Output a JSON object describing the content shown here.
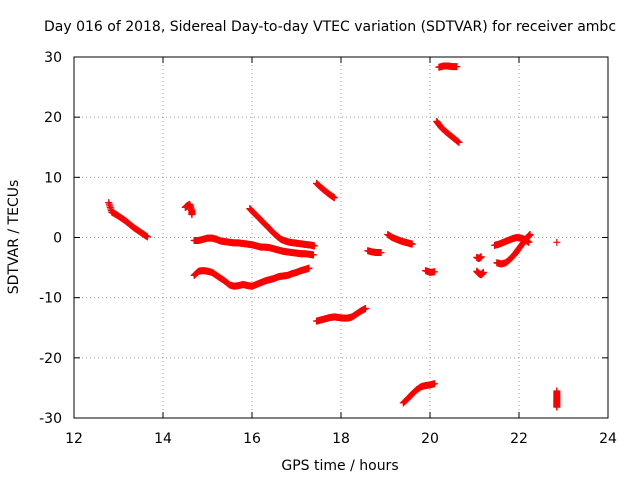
{
  "chart_data": {
    "type": "scatter",
    "title": "Day 016 of 2018, Sidereal Day-to-day VTEC variation (SDTVAR) for receiver ambc",
    "xlabel": "GPS time / hours",
    "ylabel": "SDTVAR / TECUs",
    "xlim": [
      12,
      24
    ],
    "ylim": [
      -30,
      30
    ],
    "xticks": [
      "12",
      "14",
      "16",
      "18",
      "20",
      "22",
      "24"
    ],
    "yticks": [
      "-30",
      "-20",
      "-10",
      "0",
      "10",
      "20",
      "30"
    ],
    "grid": true,
    "marker": "+",
    "color": "#ff0000",
    "series": [
      {
        "name": "s1",
        "x": [
          12.78,
          12.85,
          12.95,
          13.05,
          13.15,
          13.25,
          13.35,
          13.45,
          13.55,
          13.65
        ],
        "y": [
          5.8,
          4.2,
          3.8,
          3.3,
          2.8,
          2.2,
          1.6,
          1.1,
          0.6,
          0.1
        ]
      },
      {
        "name": "s2",
        "x": [
          14.5,
          14.55,
          14.6,
          14.65,
          14.65
        ],
        "y": [
          5.0,
          5.3,
          5.5,
          4.3,
          3.8
        ]
      },
      {
        "name": "s3",
        "x": [
          14.7,
          14.8,
          14.9,
          15.0,
          15.1,
          15.2,
          15.3,
          15.4,
          15.5,
          15.6,
          15.7,
          15.8,
          15.9,
          16.0,
          16.1,
          16.2,
          16.3,
          16.4,
          16.5,
          16.6,
          16.7,
          16.8,
          16.9,
          17.0,
          17.1,
          17.2,
          17.3,
          17.38
        ],
        "y": [
          -0.5,
          -0.5,
          -0.3,
          -0.1,
          -0.1,
          -0.3,
          -0.6,
          -0.7,
          -0.8,
          -0.9,
          -0.9,
          -1.0,
          -1.1,
          -1.2,
          -1.4,
          -1.6,
          -1.6,
          -1.7,
          -1.9,
          -2.1,
          -2.3,
          -2.4,
          -2.5,
          -2.6,
          -2.7,
          -2.7,
          -2.8,
          -2.9
        ]
      },
      {
        "name": "s4",
        "x": [
          14.7,
          14.8,
          14.9,
          15.0,
          15.1,
          15.2,
          15.3,
          15.4,
          15.5,
          15.6,
          15.7,
          15.8,
          15.9,
          16.0,
          16.1,
          16.2,
          16.3,
          16.4,
          16.5,
          16.6,
          16.7,
          16.8,
          16.9,
          17.0,
          17.1,
          17.2,
          17.28
        ],
        "y": [
          -6.3,
          -5.6,
          -5.5,
          -5.6,
          -5.8,
          -6.3,
          -6.8,
          -7.3,
          -7.9,
          -8.1,
          -8.0,
          -7.8,
          -8.0,
          -8.1,
          -7.8,
          -7.5,
          -7.2,
          -7.0,
          -6.8,
          -6.5,
          -6.4,
          -6.3,
          -6.0,
          -5.8,
          -5.5,
          -5.3,
          -5.1
        ]
      },
      {
        "name": "s5",
        "x": [
          15.95,
          16.05,
          16.15,
          16.25,
          16.35,
          16.45,
          16.55,
          16.65,
          16.75,
          16.85,
          16.95,
          17.05,
          17.15,
          17.25,
          17.35,
          17.4
        ],
        "y": [
          4.8,
          4.0,
          3.3,
          2.5,
          1.8,
          1.0,
          0.3,
          -0.3,
          -0.6,
          -0.8,
          -0.9,
          -1.0,
          -1.1,
          -1.2,
          -1.3,
          -1.4
        ]
      },
      {
        "name": "s6",
        "x": [
          17.45,
          17.55,
          17.65,
          17.75,
          17.85
        ],
        "y": [
          9.0,
          8.3,
          7.7,
          7.1,
          6.6
        ]
      },
      {
        "name": "s7",
        "x": [
          17.45,
          17.55,
          17.65,
          17.75,
          17.85,
          17.95,
          18.05,
          18.15,
          18.25,
          18.35,
          18.45,
          18.55
        ],
        "y": [
          -13.9,
          -13.7,
          -13.5,
          -13.3,
          -13.2,
          -13.3,
          -13.4,
          -13.4,
          -13.2,
          -12.7,
          -12.2,
          -11.8
        ]
      },
      {
        "name": "s8",
        "x": [
          18.6,
          18.7,
          18.8,
          18.9
        ],
        "y": [
          -2.2,
          -2.4,
          -2.5,
          -2.5
        ]
      },
      {
        "name": "s9",
        "x": [
          19.05,
          19.15,
          19.25,
          19.35,
          19.45,
          19.55,
          19.6
        ],
        "y": [
          0.5,
          0.0,
          -0.3,
          -0.6,
          -0.8,
          -1.0,
          -1.1
        ]
      },
      {
        "name": "s10",
        "x": [
          19.4,
          19.5,
          19.6,
          19.7,
          19.8,
          19.9,
          20.0,
          20.1
        ],
        "y": [
          -27.5,
          -26.8,
          -26.0,
          -25.3,
          -24.8,
          -24.6,
          -24.5,
          -24.3
        ]
      },
      {
        "name": "s11",
        "x": [
          19.9,
          20.0,
          20.1
        ],
        "y": [
          -5.5,
          -5.8,
          -5.7
        ]
      },
      {
        "name": "s12",
        "x": [
          20.15,
          20.25,
          20.35,
          20.45,
          20.55,
          20.65
        ],
        "y": [
          19.3,
          18.3,
          17.6,
          17.0,
          16.4,
          15.8
        ]
      },
      {
        "name": "s13",
        "x": [
          20.2,
          20.3,
          20.4,
          20.5,
          20.6
        ],
        "y": [
          28.3,
          28.5,
          28.5,
          28.4,
          28.4
        ]
      },
      {
        "name": "s14",
        "x": [
          21.05,
          21.1,
          21.15
        ],
        "y": [
          -3.3,
          -3.5,
          -3.2
        ]
      },
      {
        "name": "s15",
        "x": [
          21.05,
          21.1,
          21.15,
          21.2
        ],
        "y": [
          -5.6,
          -6.0,
          -6.2,
          -5.8
        ]
      },
      {
        "name": "s16",
        "x": [
          21.45,
          21.55,
          21.65,
          21.75,
          21.85,
          21.95,
          22.05,
          22.15,
          22.22
        ],
        "y": [
          -1.3,
          -1.1,
          -0.8,
          -0.5,
          -0.2,
          0.0,
          -0.1,
          -0.4,
          -0.8
        ]
      },
      {
        "name": "s17",
        "x": [
          21.5,
          21.6,
          21.7,
          21.8,
          21.9,
          22.0,
          22.1,
          22.2,
          22.25
        ],
        "y": [
          -4.2,
          -4.4,
          -4.2,
          -3.6,
          -2.8,
          -1.8,
          -0.8,
          0.1,
          0.5
        ]
      },
      {
        "name": "s18",
        "x": [
          22.85
        ],
        "y": [
          -0.8
        ]
      },
      {
        "name": "s19",
        "x": [
          22.85,
          22.85,
          22.85,
          22.85
        ],
        "y": [
          -25.5,
          -26.5,
          -27.4,
          -28.2
        ]
      }
    ]
  }
}
